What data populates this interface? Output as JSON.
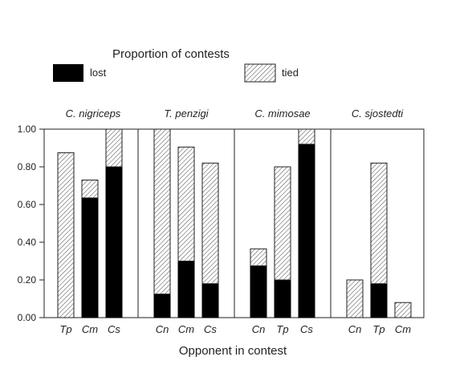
{
  "chart_data": {
    "type": "bar",
    "stacked": true,
    "legend_title": "Proportion of contests",
    "legend": [
      {
        "key": "lost",
        "label": "lost",
        "fill": "#000000"
      },
      {
        "key": "tied",
        "label": "tied",
        "fill": "hatched"
      }
    ],
    "xlabel": "Opponent in contest",
    "ylabel": "",
    "ylim": [
      0,
      1.0
    ],
    "yticks": [
      "0.00",
      "0.20",
      "0.40",
      "0.60",
      "0.80",
      "1.00"
    ],
    "grid": false,
    "legend_position": "top",
    "panels": [
      {
        "title": "C. nigriceps",
        "bars": [
          {
            "category": "Tp",
            "lost": 0.0,
            "tied": 0.875
          },
          {
            "category": "Cm",
            "lost": 0.635,
            "tied": 0.095
          },
          {
            "category": "Cs",
            "lost": 0.8,
            "tied": 0.2
          }
        ]
      },
      {
        "title": "T. penzigi",
        "bars": [
          {
            "category": "Cn",
            "lost": 0.125,
            "tied": 0.875
          },
          {
            "category": "Cm",
            "lost": 0.3,
            "tied": 0.605
          },
          {
            "category": "Cs",
            "lost": 0.18,
            "tied": 0.64
          }
        ]
      },
      {
        "title": "C. mimosae",
        "bars": [
          {
            "category": "Cn",
            "lost": 0.275,
            "tied": 0.09
          },
          {
            "category": "Tp",
            "lost": 0.2,
            "tied": 0.6
          },
          {
            "category": "Cs",
            "lost": 0.92,
            "tied": 0.08
          }
        ]
      },
      {
        "title": "C. sjostedti",
        "bars": [
          {
            "category": "Cn",
            "lost": 0.0,
            "tied": 0.2
          },
          {
            "category": "Tp",
            "lost": 0.18,
            "tied": 0.64
          },
          {
            "category": "Cm",
            "lost": 0.0,
            "tied": 0.08
          }
        ]
      }
    ]
  }
}
